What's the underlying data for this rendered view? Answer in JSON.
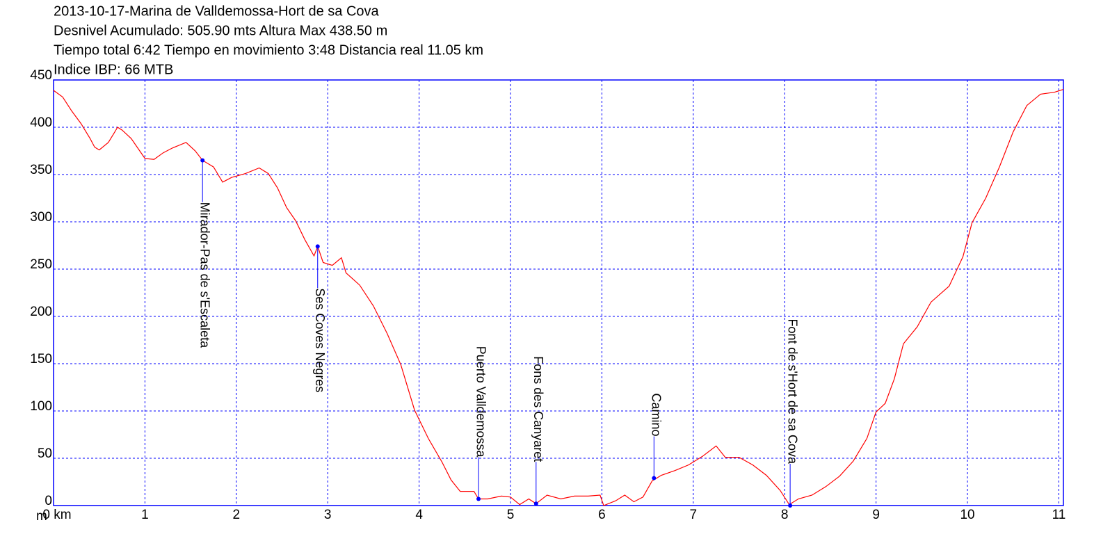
{
  "chart_data": {
    "type": "line",
    "title": "2013-10-17-Marina de Valldemossa-Hort de sa Cova",
    "subtitle": [
      "Desnivel Acumulado: 505.90 mts  Altura Max 438.50 m",
      "Tiempo total 6:42 Tiempo en movimiento 3:48 Distancia real 11.05 km",
      "Indice IBP: 66 MTB"
    ],
    "y_label": "m",
    "color": "#ff0000",
    "grid": true,
    "grid_color": "#0000ff",
    "xlim": [
      0,
      11.05
    ],
    "ylim": [
      0,
      450
    ],
    "xticks": [
      {
        "value": 0,
        "label": "0 km"
      },
      1,
      2,
      3,
      4,
      5,
      6,
      7,
      8,
      9,
      10,
      11
    ],
    "yticks": [
      0,
      50,
      100,
      150,
      200,
      250,
      300,
      350,
      400,
      450
    ],
    "x": [
      0,
      0.1,
      0.2,
      0.3,
      0.4,
      0.45,
      0.5,
      0.6,
      0.67,
      0.7,
      0.75,
      0.85,
      1.0,
      1.1,
      1.2,
      1.3,
      1.45,
      1.55,
      1.63,
      1.75,
      1.85,
      1.95,
      2.1,
      2.25,
      2.35,
      2.45,
      2.55,
      2.65,
      2.75,
      2.85,
      2.89,
      2.95,
      3.05,
      3.15,
      3.2,
      3.35,
      3.5,
      3.65,
      3.8,
      3.95,
      4.1,
      4.25,
      4.35,
      4.45,
      4.6,
      4.65,
      4.75,
      4.9,
      5.0,
      5.1,
      5.2,
      5.28,
      5.4,
      5.55,
      5.7,
      5.85,
      5.98,
      6.02,
      6.15,
      6.25,
      6.35,
      6.45,
      6.55,
      6.65,
      6.8,
      6.95,
      7.1,
      7.25,
      7.35,
      7.5,
      7.65,
      7.8,
      7.95,
      8.05,
      8.15,
      8.3,
      8.45,
      8.6,
      8.75,
      8.9,
      9.0,
      9.1,
      9.2,
      9.3,
      9.45,
      9.6,
      9.8,
      9.95,
      10.05,
      10.2,
      10.35,
      10.5,
      10.65,
      10.8,
      10.95,
      11.05
    ],
    "values": [
      439,
      432,
      417,
      404,
      388,
      379,
      376,
      384,
      395,
      400,
      397,
      388,
      367,
      366,
      373,
      378,
      384,
      375,
      365,
      358,
      342,
      347,
      351,
      357,
      351,
      336,
      315,
      301,
      281,
      264,
      274,
      257,
      254,
      262,
      246,
      233,
      211,
      182,
      149,
      101,
      71,
      46,
      27,
      15,
      15,
      7,
      7,
      10,
      9,
      1,
      7,
      2,
      11,
      7,
      10,
      10,
      11,
      0,
      5,
      11,
      4,
      9,
      26,
      32,
      37,
      43,
      52,
      63,
      51,
      51,
      43,
      32,
      16,
      1,
      7,
      11,
      20,
      31,
      47,
      71,
      99,
      108,
      134,
      171,
      189,
      215,
      232,
      263,
      299,
      325,
      358,
      395,
      423,
      435,
      437,
      440
    ],
    "annotations": [
      {
        "label": "Mirador-Pas de s'Escaleta",
        "x": 1.63,
        "y": 365
      },
      {
        "label": "Ses Coves Negres",
        "x": 2.89,
        "y": 274
      },
      {
        "label": "Puerto Valldemossa",
        "x": 4.65,
        "y": 7
      },
      {
        "label": "Fons des Canyaret",
        "x": 5.28,
        "y": 2
      },
      {
        "label": "Camino",
        "x": 6.57,
        "y": 29
      },
      {
        "label": "Font de s'Hort de sa Cova",
        "x": 8.06,
        "y": 0
      }
    ],
    "annotation_color": "#0000ff"
  }
}
